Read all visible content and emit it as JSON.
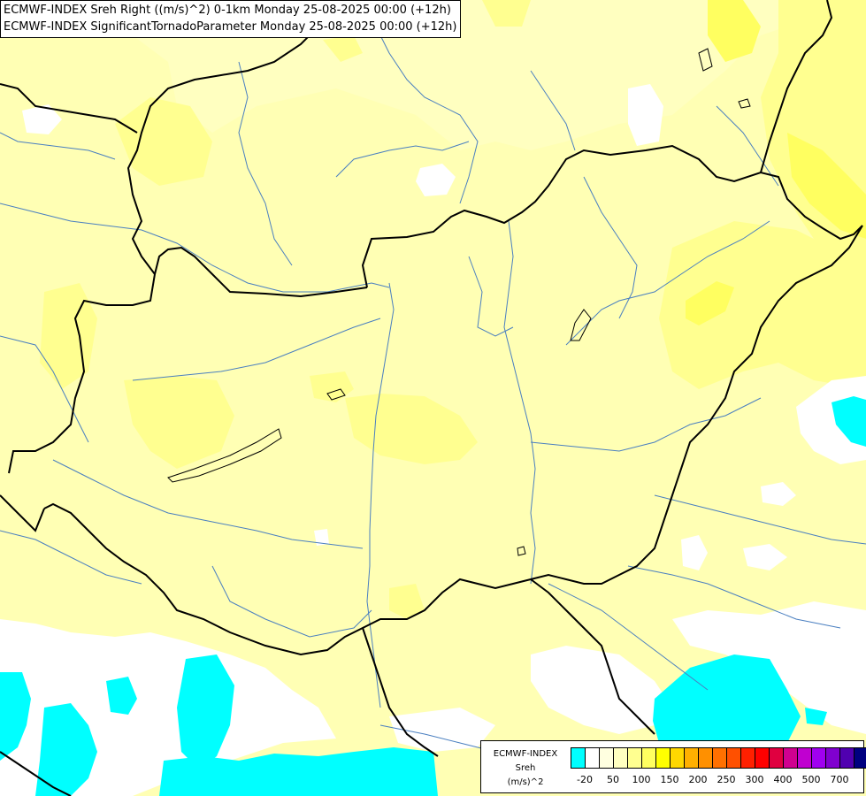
{
  "titles": {
    "line1": "ECMWF-INDEX Sreh Right ((m/s)^2) 0-1km Monday 25-08-2025 00:00 (+12h)",
    "line2": "ECMWF-INDEX SignificantTornadoParameter Monday 25-08-2025 00:00 (+12h)"
  },
  "legend": {
    "name": "ECMWF-INDEX",
    "variable": "Sreh",
    "unit": "(m/s)^2",
    "colors": [
      "#00ffff",
      "#ffffff",
      "#ffffe0",
      "#ffffc0",
      "#ffff90",
      "#ffff60",
      "#ffff00",
      "#ffd800",
      "#ffb000",
      "#ff9000",
      "#ff7000",
      "#ff5000",
      "#ff2000",
      "#ff0000",
      "#e00040",
      "#d00090",
      "#c000d0",
      "#a000f0",
      "#8000d0",
      "#5000b0",
      "#000080"
    ],
    "ticks": [
      "-20",
      "50",
      "100",
      "150",
      "200",
      "250",
      "300",
      "400",
      "500",
      "700"
    ]
  },
  "colors": {
    "background": "#ffffc0",
    "yellow_light": "#ffff90",
    "yellow": "#ffff60",
    "cyan": "#00ffff",
    "white": "#ffffff",
    "border": "#000000",
    "river": "#4a7fc0"
  }
}
